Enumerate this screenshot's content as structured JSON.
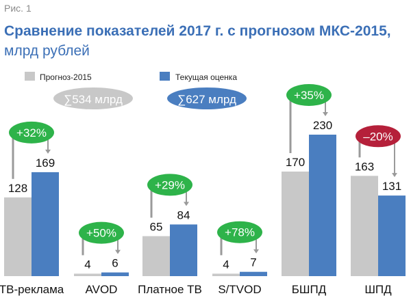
{
  "figure_label": "Рис. 1",
  "colors": {
    "forecast": "#c8c8c8",
    "current": "#4a7ec0",
    "title": "#3b6fb6",
    "positive": "#2eb34a",
    "negative": "#b5203a",
    "connector": "#9a9a9a",
    "forecast_total_bg": "#c8c8c8",
    "current_total_bg": "#4a7ec0"
  },
  "chart_data": {
    "type": "bar",
    "title": "Сравнение показателей 2017 г. с прогнозом МКС-2015,",
    "subtitle": "млрд рублей",
    "categories": [
      "ТВ-реклама",
      "AVOD",
      "Платное ТВ",
      "S/TVOD",
      "БШПД",
      "ШПД"
    ],
    "series": [
      {
        "name": "Прогноз-2015",
        "values": [
          128,
          4,
          65,
          4,
          170,
          163
        ],
        "total": "∑534 млрд"
      },
      {
        "name": "Текущая оценка",
        "values": [
          169,
          6,
          84,
          7,
          230,
          131
        ],
        "total": "∑627 млрд"
      }
    ],
    "changes": [
      "+32%",
      "+50%",
      "+29%",
      "+78%",
      "+35%",
      "–20%"
    ],
    "change_sign": [
      "positive",
      "positive",
      "positive",
      "positive",
      "positive",
      "negative"
    ],
    "ylim": [
      0,
      260
    ],
    "grid": false,
    "legend": "top-left"
  }
}
